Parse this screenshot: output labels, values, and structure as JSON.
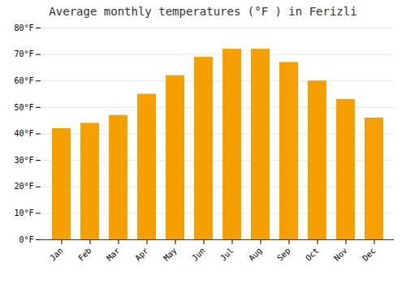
{
  "chart_data": {
    "type": "bar",
    "title": "Average monthly temperatures (°F ) in Ferizli",
    "categories": [
      "Jan",
      "Feb",
      "Mar",
      "Apr",
      "May",
      "Jun",
      "Jul",
      "Aug",
      "Sep",
      "Oct",
      "Nov",
      "Dec"
    ],
    "values": [
      42,
      44,
      47,
      55,
      62,
      69,
      72,
      72,
      67,
      60,
      53,
      46
    ],
    "color": "#F5A000",
    "ylim": [
      0,
      80
    ],
    "yticks": [
      {
        "value": 0,
        "label": "0°F"
      },
      {
        "value": 10,
        "label": "10°F"
      },
      {
        "value": 20,
        "label": "20°F"
      },
      {
        "value": 30,
        "label": "30°F"
      },
      {
        "value": 40,
        "label": "40°F"
      },
      {
        "value": 50,
        "label": "50°F"
      },
      {
        "value": 60,
        "label": "60°F"
      },
      {
        "value": 70,
        "label": "70°F"
      },
      {
        "value": 80,
        "label": "80°F"
      }
    ],
    "grid": true
  }
}
